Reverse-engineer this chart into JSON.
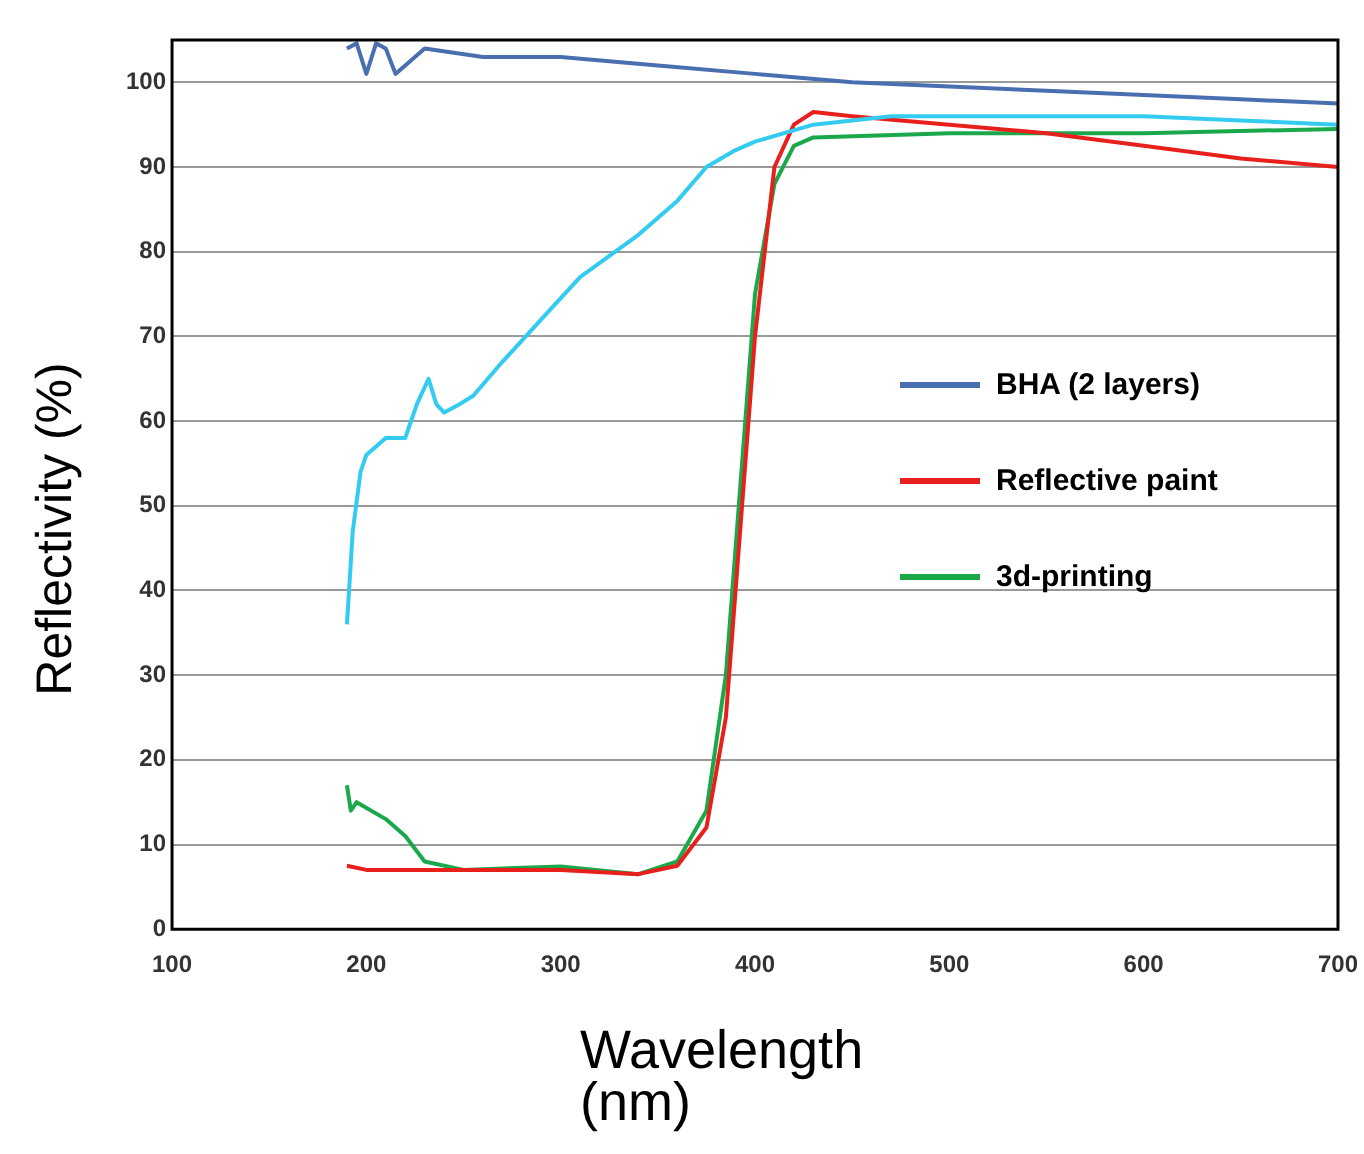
{
  "chart_data": {
    "type": "line",
    "xlabel": "Wavelength (nm)",
    "ylabel": "Reflectivity (%)",
    "xlim": [
      100,
      700
    ],
    "xticks": [
      100,
      200,
      300,
      400,
      500,
      600,
      700
    ],
    "ylim": [
      0,
      105
    ],
    "yticks": [
      0,
      10,
      20,
      30,
      40,
      50,
      60,
      70,
      80,
      90,
      100
    ],
    "grid": "y",
    "legend": "right",
    "marker": "none",
    "line_style": "solid",
    "series": [
      {
        "color": "#33ccf0",
        "x": [
          190,
          193,
          197,
          200,
          205,
          210,
          220,
          226,
          232,
          236,
          240,
          248,
          255,
          270,
          290,
          310,
          340,
          360,
          375,
          390,
          400,
          430,
          470,
          550,
          600,
          650,
          700
        ],
        "values": [
          36,
          47,
          54,
          56,
          57,
          58,
          58,
          62,
          65,
          62,
          61,
          62,
          63,
          67,
          72,
          77,
          82,
          86,
          90,
          92,
          93,
          95,
          96,
          96,
          96,
          95.5,
          95
        ]
      },
      {
        "name": "BHA (2 layers)",
        "color": "#4a6fb0",
        "x": [
          190,
          195,
          200,
          205,
          210,
          215,
          220,
          230,
          260,
          300,
          350,
          400,
          450,
          500,
          550,
          600,
          650,
          700
        ],
        "values": [
          104,
          104.6,
          101,
          104.6,
          104,
          101,
          102,
          104,
          103,
          103,
          102,
          101,
          100,
          99.5,
          99,
          98.5,
          98,
          97.5
        ]
      },
      {
        "name": "Reflective paint",
        "color": "#e8201c",
        "x": [
          190,
          200,
          250,
          300,
          340,
          360,
          375,
          385,
          395,
          400,
          410,
          420,
          430,
          450,
          500,
          550,
          600,
          650,
          700
        ],
        "values": [
          7.5,
          7,
          7,
          7,
          6.5,
          7.5,
          12,
          25,
          55,
          70,
          90,
          95,
          96.5,
          96,
          95,
          94,
          92.5,
          91,
          90
        ]
      },
      {
        "name": "3d-printing",
        "color": "#1aa84a",
        "x": [
          190,
          192,
          195,
          210,
          220,
          230,
          250,
          300,
          340,
          360,
          375,
          385,
          395,
          400,
          410,
          420,
          430,
          500,
          600,
          700
        ],
        "values": [
          17,
          14,
          15,
          13,
          11,
          8,
          7,
          7.4,
          6.5,
          8,
          14,
          30,
          60,
          75,
          88,
          92.5,
          93.5,
          94,
          94,
          94.5
        ]
      }
    ]
  }
}
